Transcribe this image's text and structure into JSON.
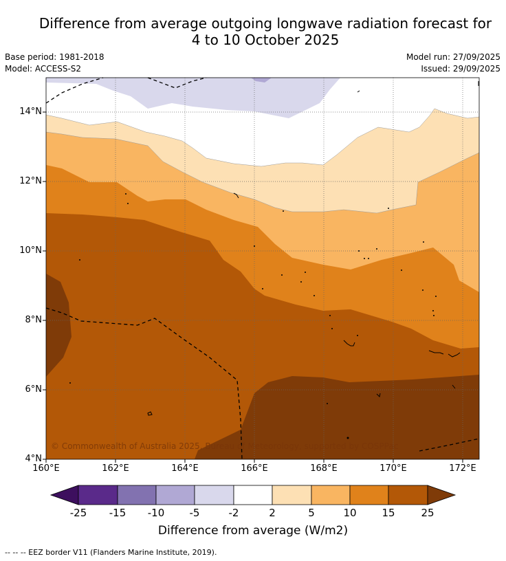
{
  "title_line1": "Difference from average outgoing longwave radiation forecast for",
  "title_line2": "4 to 10 October 2025",
  "base_period": "Base period: 1981-2018",
  "model": "Model: ACCESS-S2",
  "model_run": "Model run: 27/09/2025",
  "issued": "Issued: 29/09/2025",
  "lat_labels": [
    "14°N",
    "12°N",
    "10°N",
    "8°N",
    "6°N",
    "4°N"
  ],
  "lon_labels": [
    "160°E",
    "162°E",
    "164°E",
    "166°E",
    "168°E",
    "170°E",
    "172°E"
  ],
  "copyright": "© Commonwealth of Australia 2025, Bureau of Meteorology, supported by COSPPac",
  "colorbar": {
    "labels": [
      "-25",
      "-15",
      "-10",
      "-5",
      "-2",
      "2",
      "5",
      "10",
      "15",
      "25"
    ],
    "colors": [
      "#3d0f5e",
      "#5a2a8a",
      "#8272b0",
      "#b0a8d4",
      "#d9d8ec",
      "#ffffff",
      "#fde0b4",
      "#f9b561",
      "#e0821b",
      "#b35807",
      "#7f3b08"
    ],
    "title": "Difference from average (W/m2)"
  },
  "eez_legend": "--  --  -- EEZ border V11 (Flanders Marine Institute, 2019)."
}
